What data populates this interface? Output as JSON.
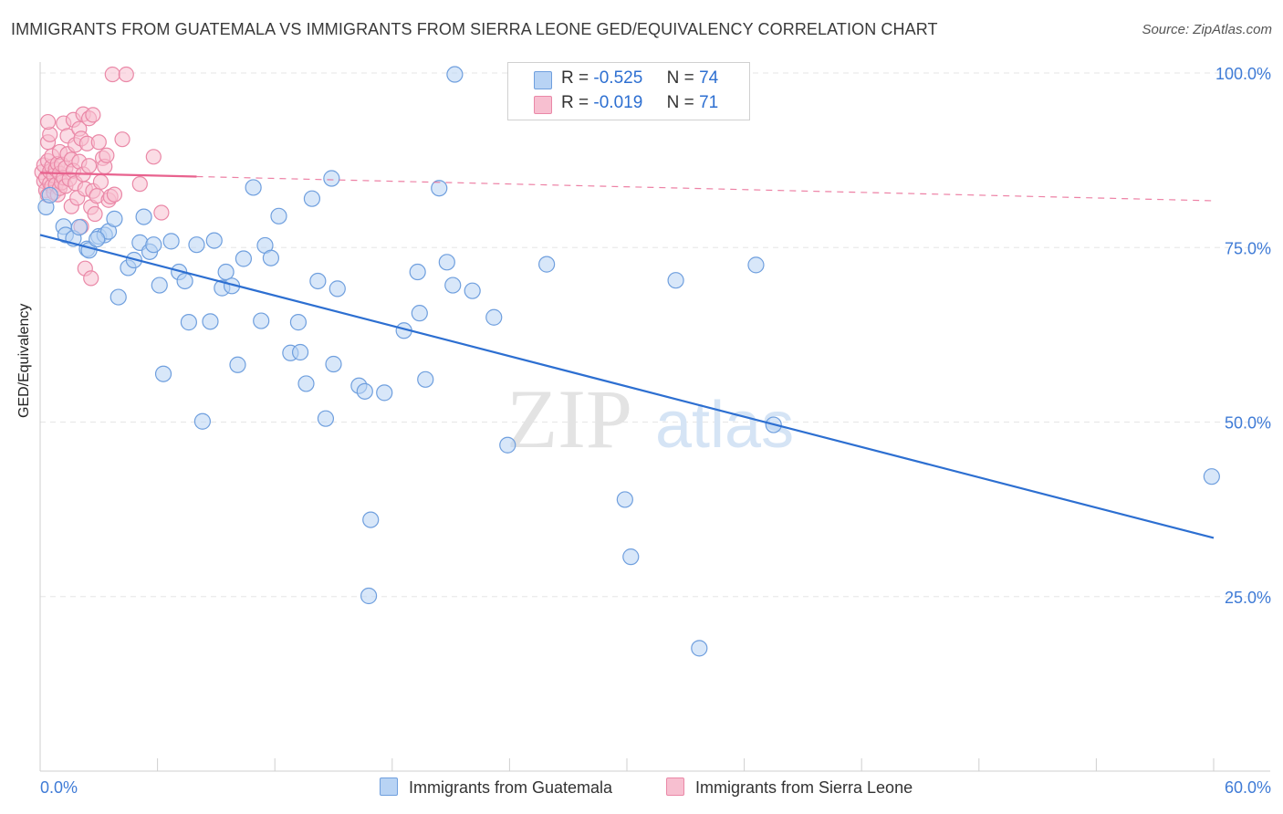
{
  "title": "IMMIGRANTS FROM GUATEMALA VS IMMIGRANTS FROM SIERRA LEONE GED/EQUIVALENCY CORRELATION CHART",
  "source": "Source: ZipAtlas.com",
  "watermark": {
    "zip": "ZIP",
    "atlas": "atlas"
  },
  "legend": {
    "r_label": "R =",
    "n_label": "N =",
    "series1": {
      "r": "-0.525",
      "n": "74"
    },
    "series2": {
      "r": "-0.019",
      "n": "71"
    }
  },
  "colors": {
    "blue_fill": "#b8d3f4",
    "blue_stroke": "#6f9fde",
    "blue_line": "#2d6fd1",
    "pink_fill": "#f7bfd0",
    "pink_stroke": "#ea88a7",
    "pink_line": "#e8628e",
    "axis_label": "#3f7bd6",
    "grid": "#e6e6e6"
  },
  "chart_data": {
    "type": "scatter",
    "title": "IMMIGRANTS FROM GUATEMALA VS IMMIGRANTS FROM SIERRA LEONE GED/EQUIVALENCY CORRELATION CHART",
    "xlabel": "",
    "ylabel": "GED/Equivalency",
    "xlim": [
      0,
      60
    ],
    "ylim": [
      0,
      102.5
    ],
    "x_tick_labels": [
      "0.0%",
      "60.0%"
    ],
    "y_tick_labels": [
      "100.0%",
      "75.0%",
      "50.0%",
      "25.0%"
    ],
    "y_ticks": [
      100,
      75,
      50,
      25
    ],
    "grid": true,
    "legend_position": "bottom",
    "series": [
      {
        "name": "Immigrants from Guatemala",
        "r": -0.525,
        "n": 74,
        "trend": {
          "x": [
            0,
            60
          ],
          "y": [
            76.8,
            33.4
          ],
          "style": "solid"
        },
        "points": [
          [
            0.3,
            80.8
          ],
          [
            1.2,
            78.0
          ],
          [
            1.3,
            76.8
          ],
          [
            1.7,
            76.3
          ],
          [
            2.0,
            77.9
          ],
          [
            2.4,
            74.8
          ],
          [
            2.5,
            74.6
          ],
          [
            3.0,
            76.6
          ],
          [
            3.3,
            76.8
          ],
          [
            3.5,
            77.3
          ],
          [
            3.8,
            79.1
          ],
          [
            4.0,
            67.9
          ],
          [
            4.5,
            72.1
          ],
          [
            4.8,
            73.2
          ],
          [
            5.1,
            75.7
          ],
          [
            5.3,
            79.4
          ],
          [
            5.6,
            74.4
          ],
          [
            5.8,
            75.4
          ],
          [
            6.1,
            69.6
          ],
          [
            6.3,
            56.9
          ],
          [
            6.7,
            75.9
          ],
          [
            7.1,
            71.5
          ],
          [
            7.4,
            70.2
          ],
          [
            7.6,
            64.3
          ],
          [
            8.0,
            75.4
          ],
          [
            8.3,
            50.1
          ],
          [
            8.7,
            64.4
          ],
          [
            8.9,
            76.0
          ],
          [
            9.3,
            69.2
          ],
          [
            9.5,
            71.5
          ],
          [
            9.8,
            69.5
          ],
          [
            10.1,
            58.2
          ],
          [
            10.4,
            73.4
          ],
          [
            10.9,
            83.6
          ],
          [
            11.3,
            64.5
          ],
          [
            11.5,
            75.3
          ],
          [
            11.8,
            73.5
          ],
          [
            12.2,
            79.5
          ],
          [
            12.8,
            59.9
          ],
          [
            13.3,
            60.0
          ],
          [
            13.2,
            64.3
          ],
          [
            13.6,
            55.5
          ],
          [
            13.9,
            82.0
          ],
          [
            14.2,
            70.2
          ],
          [
            14.6,
            50.5
          ],
          [
            14.9,
            84.9
          ],
          [
            15.0,
            58.3
          ],
          [
            15.2,
            69.1
          ],
          [
            16.3,
            55.2
          ],
          [
            16.6,
            54.4
          ],
          [
            16.9,
            36.0
          ],
          [
            16.8,
            25.1
          ],
          [
            17.6,
            54.2
          ],
          [
            18.6,
            63.1
          ],
          [
            19.3,
            71.5
          ],
          [
            19.4,
            65.6
          ],
          [
            19.7,
            56.1
          ],
          [
            20.4,
            83.5
          ],
          [
            20.8,
            72.9
          ],
          [
            21.1,
            69.6
          ],
          [
            21.2,
            99.8
          ],
          [
            22.1,
            68.8
          ],
          [
            23.2,
            65.0
          ],
          [
            23.9,
            46.7
          ],
          [
            25.9,
            72.6
          ],
          [
            29.9,
            38.9
          ],
          [
            30.2,
            30.7
          ],
          [
            32.5,
            70.3
          ],
          [
            33.7,
            17.6
          ],
          [
            36.6,
            72.5
          ],
          [
            37.5,
            49.6
          ],
          [
            59.9,
            42.2
          ],
          [
            0.5,
            82.5
          ],
          [
            2.9,
            76.2
          ]
        ]
      },
      {
        "name": "Immigrants from Sierra Leone",
        "r": -0.019,
        "n": 71,
        "trend": {
          "x": [
            0,
            60
          ],
          "y": [
            85.7,
            81.7
          ],
          "solid_until": 8.0,
          "style": "solid-then-dashed"
        },
        "points": [
          [
            0.1,
            85.8
          ],
          [
            0.2,
            84.5
          ],
          [
            0.2,
            86.8
          ],
          [
            0.3,
            83.2
          ],
          [
            0.3,
            85.0
          ],
          [
            0.4,
            82.5
          ],
          [
            0.4,
            87.4
          ],
          [
            0.4,
            90.1
          ],
          [
            0.5,
            84.2
          ],
          [
            0.5,
            85.9
          ],
          [
            0.5,
            91.2
          ],
          [
            0.6,
            83.8
          ],
          [
            0.6,
            86.6
          ],
          [
            0.6,
            88.1
          ],
          [
            0.7,
            82.9
          ],
          [
            0.7,
            85.3
          ],
          [
            0.8,
            84.0
          ],
          [
            0.8,
            86.2
          ],
          [
            0.9,
            82.6
          ],
          [
            0.9,
            87.0
          ],
          [
            1.0,
            83.5
          ],
          [
            1.0,
            85.6
          ],
          [
            1.0,
            88.7
          ],
          [
            1.1,
            84.3
          ],
          [
            1.1,
            86.9
          ],
          [
            1.2,
            85.0
          ],
          [
            1.2,
            92.8
          ],
          [
            1.3,
            83.8
          ],
          [
            1.3,
            86.4
          ],
          [
            1.4,
            88.4
          ],
          [
            1.4,
            91.0
          ],
          [
            1.5,
            84.8
          ],
          [
            1.6,
            87.6
          ],
          [
            1.6,
            80.9
          ],
          [
            1.7,
            93.3
          ],
          [
            1.7,
            86.0
          ],
          [
            1.8,
            84.2
          ],
          [
            1.8,
            89.7
          ],
          [
            1.9,
            82.1
          ],
          [
            2.0,
            92.0
          ],
          [
            2.0,
            87.3
          ],
          [
            2.1,
            78.0
          ],
          [
            2.1,
            90.6
          ],
          [
            2.2,
            94.1
          ],
          [
            2.2,
            85.5
          ],
          [
            2.3,
            83.4
          ],
          [
            2.3,
            72.0
          ],
          [
            2.4,
            89.9
          ],
          [
            2.5,
            93.5
          ],
          [
            2.5,
            86.7
          ],
          [
            2.6,
            70.6
          ],
          [
            2.6,
            80.8
          ],
          [
            2.7,
            94.0
          ],
          [
            2.7,
            83.1
          ],
          [
            2.8,
            79.8
          ],
          [
            2.9,
            82.4
          ],
          [
            3.0,
            90.1
          ],
          [
            3.1,
            84.4
          ],
          [
            3.2,
            87.8
          ],
          [
            3.3,
            86.6
          ],
          [
            3.4,
            88.2
          ],
          [
            3.5,
            81.8
          ],
          [
            3.6,
            82.3
          ],
          [
            3.7,
            99.8
          ],
          [
            3.8,
            82.6
          ],
          [
            4.2,
            90.5
          ],
          [
            4.4,
            99.8
          ],
          [
            5.1,
            84.1
          ],
          [
            5.8,
            88.0
          ],
          [
            6.2,
            80.0
          ],
          [
            0.4,
            93.0
          ]
        ]
      }
    ]
  }
}
